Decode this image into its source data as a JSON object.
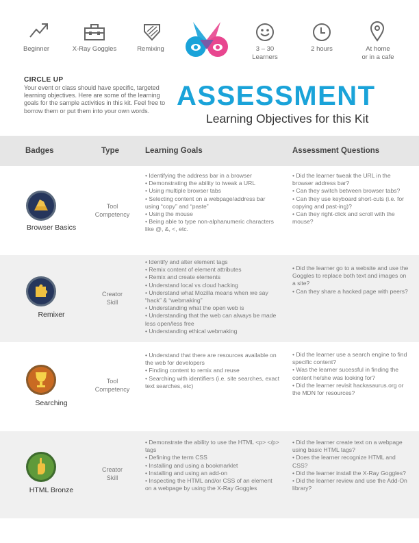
{
  "top_bar": {
    "level_label": "Beginner",
    "tool_label": "X-Ray Goggles",
    "skill_label": "Remixing",
    "learners_label": "3 – 30\nLearners",
    "time_label": "2 hours",
    "location_label": "At home\nor in a cafe",
    "icons": [
      "trend-up-icon",
      "toolbox-icon",
      "shield-icon",
      "webmaker-logo",
      "smiley-icon",
      "clock-icon",
      "map-pin-icon"
    ]
  },
  "intro": {
    "heading": "CIRCLE UP",
    "text": "Your event or class should have specific, targeted learning objectives. Here are some of the learning goals for the sample activities in this kit. Feel free to borrow them  or put them into your own words."
  },
  "title": {
    "main": "ASSESSMENT",
    "sub": "Learning Objectives for this Kit"
  },
  "table": {
    "headers": [
      "Badges",
      "Type",
      "Learning Goals",
      "Assessment Questions"
    ],
    "rows": [
      {
        "badge": "Browser Basics",
        "type": "Tool\nCompetency",
        "goals": "• Identifying the address bar in a browser\n• Demonstrating the ability to tweak a URL\n• Using multiple browser tabs\n• Selecting content on a webpage/address bar using “copy” and “paste”\n• Using the mouse\n• Being able to type non-alphanumeric characters like @, &, <, etc.",
        "questions": "• Did the learner tweak the URL in the browser address bar?\n• Can they switch between browser tabs?\n• Can they use keyboard short-cuts (i.e. for copying and past-ing)?\n• Can they right-click and scroll with the mouse?"
      },
      {
        "badge": "Remixer",
        "type": "Creator\nSkill",
        "goals": "• Identify and alter element tags\n• Remix content of element attributes\n• Remix and create elements\n• Understand local vs cloud hacking\n• Understand what Mozilla means when we say “hack” & “webmaking”\n• Understanding what the open web is\n• Understanding that the web can always be made less open/less free\n• Understanding ethical webmaking",
        "questions": "• Did the learner go to a website and use the Goggles to replace both text and images on a site?\n• Can they share a hacked page with peers?"
      },
      {
        "badge": "Searching",
        "type": "Tool\nCompetency",
        "goals": "• Understand that there are resources available on the web for developers\n• Finding content to remix and reuse\n• Searching with identifiers (i.e. site searches, exact text searches, etc)",
        "questions": "• Did the learner use a search engine to find specific content?\n• Was the learner sucessful in finding the content he/she was looking for?\n• Did the learner revisit hackasaurus.org or the MDN for resources?"
      },
      {
        "badge": "HTML Bronze",
        "type": "Creator\nSkill",
        "goals": "• Demonstrate the ability to use the HTML <p> </p> tags\n• Defining the term CSS\n• Installing and using a bookmarklet\n• Installing and using an add-on\n• Inspecting the HTML and/or CSS of an element on a webpage by using the X-Ray Goggles",
        "questions": "• Did the learner create text on a webpage using basic HTML tags?\n• Does the learner recognize HTML and CSS?\n• Did the learner install the X-Ray Goggles?\n• Did the learner review and use the Add-On library?"
      }
    ]
  },
  "colors": {
    "accent": "#1aa3d9",
    "logo_pink": "#e8468f",
    "row_gray": "#f0f0f0",
    "header_gray": "#e6e6e6"
  }
}
